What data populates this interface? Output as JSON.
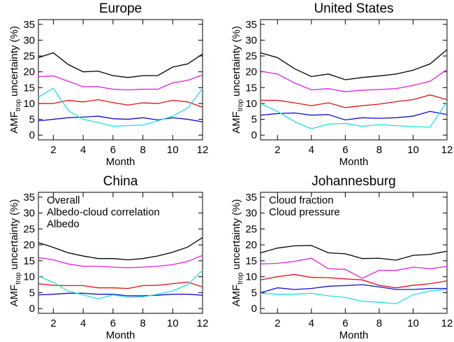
{
  "chart_data": [
    {
      "type": "line",
      "title": "Europe",
      "xlabel": "Month",
      "ylabel": "AMF",
      "ylabel_sub": "trop",
      "ylabel_rest": "uncertainty (%)",
      "x": [
        1,
        2,
        3,
        4,
        5,
        6,
        7,
        8,
        9,
        10,
        11,
        12
      ],
      "xlim": [
        1,
        12
      ],
      "xticks": [
        2,
        4,
        6,
        8,
        10,
        12
      ],
      "ylim": [
        -1.5,
        36.5
      ],
      "yticks": [
        0,
        5,
        10,
        15,
        20,
        25,
        30,
        35
      ],
      "series": [
        {
          "color": "#000000",
          "values": [
            24.5,
            26,
            22.3,
            20,
            20.2,
            18.8,
            18.2,
            18.8,
            18.8,
            21.5,
            22.5,
            25.6
          ]
        },
        {
          "color": "#e020e0",
          "values": [
            18.5,
            18.7,
            17,
            15.3,
            15.3,
            14.5,
            14.3,
            14.5,
            14.5,
            16.5,
            17.3,
            19
          ]
        },
        {
          "color": "#e01010",
          "values": [
            10,
            10,
            11,
            10.5,
            11.2,
            10.3,
            9.5,
            10.2,
            10,
            11,
            10.5,
            8.8
          ]
        },
        {
          "color": "#1010d0",
          "values": [
            4.5,
            5,
            5.5,
            5.7,
            6,
            5.2,
            5,
            5.5,
            4.8,
            5.5,
            5,
            4.2
          ]
        },
        {
          "color": "#20e0e0",
          "values": [
            12,
            14.8,
            7.8,
            5,
            4,
            2.8,
            3,
            3.2,
            4.5,
            6,
            8.5,
            14.7
          ]
        }
      ]
    },
    {
      "type": "line",
      "title": "United States",
      "xlabel": "Month",
      "ylabel": "AMF",
      "ylabel_sub": "trop",
      "ylabel_rest": "uncertainty (%)",
      "x": [
        1,
        2,
        3,
        4,
        5,
        6,
        7,
        8,
        9,
        10,
        11,
        12
      ],
      "xlim": [
        1,
        12
      ],
      "xticks": [
        2,
        4,
        6,
        8,
        10,
        12
      ],
      "ylim": [
        -1.5,
        36.5
      ],
      "yticks": [
        0,
        5,
        10,
        15,
        20,
        25,
        30,
        35
      ],
      "series": [
        {
          "color": "#000000",
          "values": [
            26,
            24.5,
            21,
            18.5,
            19.3,
            17.5,
            18.2,
            18.7,
            19.3,
            20.5,
            22.5,
            27
          ]
        },
        {
          "color": "#e020e0",
          "values": [
            20.2,
            19.3,
            16.5,
            14.3,
            14.7,
            13.7,
            14.2,
            14.4,
            14.7,
            15.7,
            17,
            20.7
          ]
        },
        {
          "color": "#e01010",
          "values": [
            11,
            11,
            10.2,
            9.3,
            10.2,
            8.7,
            9.3,
            9.8,
            10.6,
            11.2,
            12.7,
            11.2
          ]
        },
        {
          "color": "#1010d0",
          "values": [
            6.3,
            6.8,
            7,
            6.3,
            6.5,
            4.8,
            5.5,
            5.3,
            5.5,
            6,
            7.5,
            6.5
          ]
        },
        {
          "color": "#20e0e0",
          "values": [
            10,
            7.5,
            4.3,
            2,
            3.5,
            3.7,
            2.8,
            3.3,
            3,
            2.7,
            2.5,
            10.5
          ]
        }
      ]
    },
    {
      "type": "line",
      "title": "China",
      "xlabel": "Month",
      "ylabel": "AMF",
      "ylabel_sub": "trop",
      "ylabel_rest": "uncertainty (%)",
      "legend": "upper left",
      "x": [
        1,
        2,
        3,
        4,
        5,
        6,
        7,
        8,
        9,
        10,
        11,
        12
      ],
      "xlim": [
        1,
        12
      ],
      "xticks": [
        2,
        4,
        6,
        8,
        10,
        12
      ],
      "ylim": [
        -1.5,
        36.5
      ],
      "yticks": [
        0,
        5,
        10,
        15,
        20,
        25,
        30,
        35
      ],
      "series": [
        {
          "name": "Overall",
          "color": "#000000",
          "values": [
            20.7,
            19.2,
            17.5,
            16.5,
            15.7,
            15.7,
            15.3,
            15.7,
            16.5,
            17.7,
            19.3,
            22.3
          ]
        },
        {
          "name": "Albedo-cloud correlation",
          "color": "#e020e0",
          "values": [
            16,
            15.3,
            14,
            13.3,
            13.3,
            13,
            12.8,
            13,
            13.3,
            13.8,
            14.8,
            16.7
          ]
        },
        {
          "name": "Albedo",
          "color": "#e01010",
          "values": [
            7.8,
            7.3,
            7.2,
            7.2,
            6.5,
            6.5,
            6.3,
            7.2,
            7.3,
            7.8,
            8.3,
            6.8
          ]
        },
        {
          "color": "#1010d0",
          "values": [
            4.3,
            4.5,
            4.8,
            4.8,
            4.5,
            4.5,
            4,
            4,
            4.2,
            4.5,
            4.5,
            4.2
          ]
        },
        {
          "color": "#20e0e0",
          "values": [
            10.2,
            8.2,
            5.5,
            4.3,
            3,
            4.3,
            3.5,
            3.7,
            4.5,
            5.5,
            7.5,
            12
          ]
        }
      ]
    },
    {
      "type": "line",
      "title": "Johannesburg",
      "xlabel": "Month",
      "ylabel": "AMF",
      "ylabel_sub": "trop",
      "ylabel_rest": "uncertainty (%)",
      "legend": "upper left",
      "x": [
        1,
        2,
        3,
        4,
        5,
        6,
        7,
        8,
        9,
        10,
        11,
        12
      ],
      "xlim": [
        1,
        12
      ],
      "xticks": [
        2,
        4,
        6,
        8,
        10,
        12
      ],
      "ylim": [
        -1.5,
        36.5
      ],
      "yticks": [
        0,
        5,
        10,
        15,
        20,
        25,
        30,
        35
      ],
      "series": [
        {
          "color": "#000000",
          "values": [
            17.5,
            19,
            19.7,
            19.8,
            17.5,
            17.2,
            15.7,
            15.8,
            15.2,
            16.7,
            17,
            18
          ]
        },
        {
          "color": "#e020e0",
          "values": [
            14,
            14.2,
            14.8,
            15.8,
            12.5,
            12.3,
            9.5,
            12,
            12,
            13,
            12.5,
            13.2
          ]
        },
        {
          "color": "#e01010",
          "values": [
            9,
            10,
            10.7,
            9.8,
            9.7,
            9.3,
            9,
            7.3,
            6.5,
            7.3,
            7.8,
            8.7
          ]
        },
        {
          "name": "Cloud fraction",
          "color": "#1010d0",
          "values": [
            5,
            6.5,
            6,
            6.3,
            7,
            7.2,
            7.5,
            6.8,
            6,
            6,
            6.3,
            6.3
          ]
        },
        {
          "name": "Cloud pressure",
          "color": "#20e0e0",
          "values": [
            4.8,
            4.5,
            4.5,
            4.8,
            4,
            3.5,
            2.3,
            2,
            1.5,
            4.3,
            5.5,
            6
          ]
        }
      ]
    }
  ]
}
